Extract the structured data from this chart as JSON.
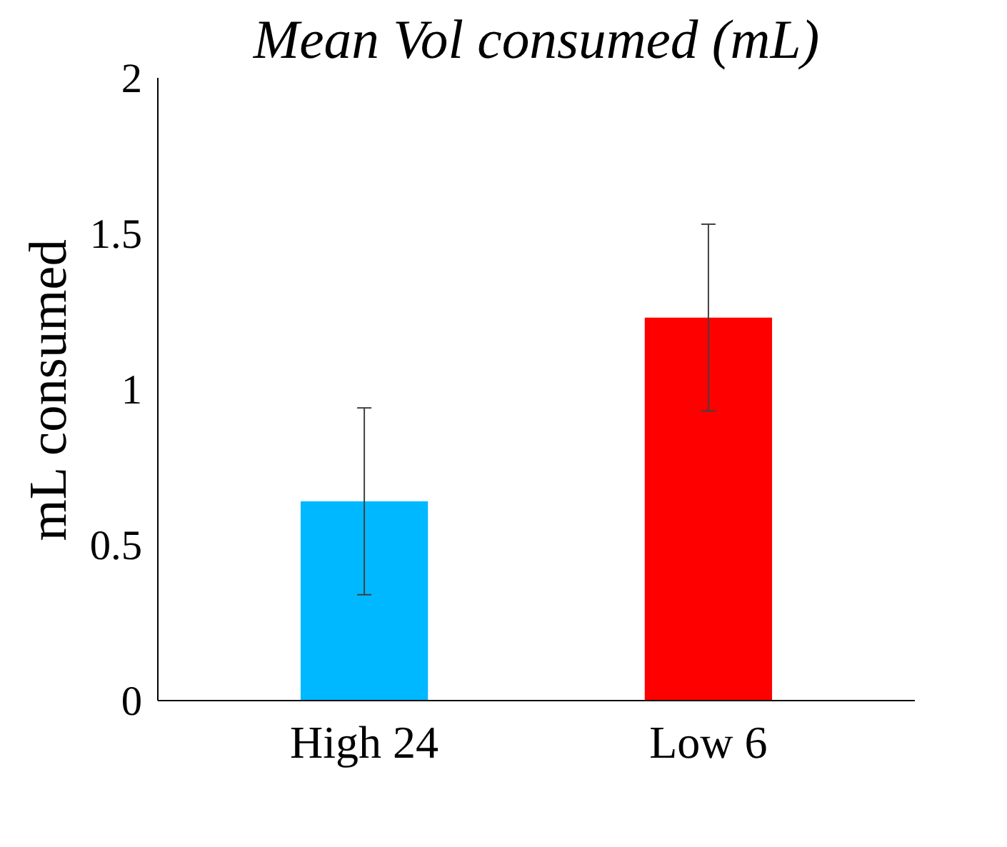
{
  "chart_data": {
    "type": "bar",
    "title": "Mean Vol consumed (mL)",
    "ylabel": "mL consumed",
    "categories": [
      "High 24",
      "Low 6"
    ],
    "values": [
      0.64,
      1.23
    ],
    "colors": [
      "#00b8ff",
      "#ff0000"
    ],
    "errors": [
      0.3,
      0.3
    ],
    "ylim": [
      0,
      2
    ],
    "yticks": [
      0,
      0.5,
      1,
      1.5,
      2
    ],
    "grid": false
  }
}
